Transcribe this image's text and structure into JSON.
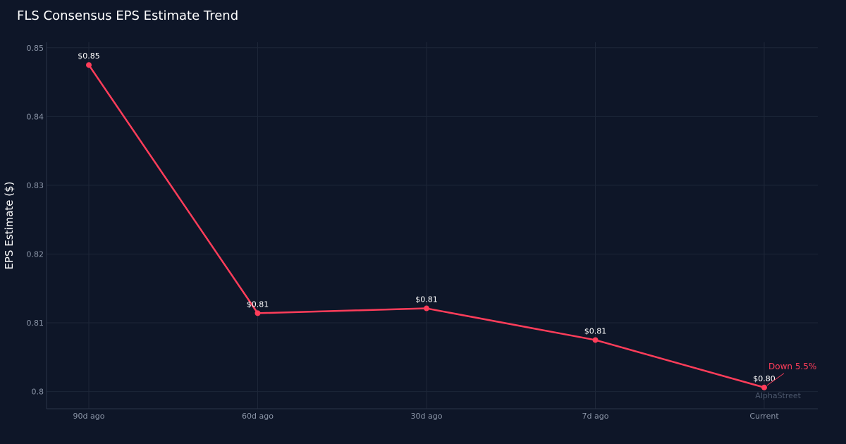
{
  "chart_data": {
    "type": "line",
    "title": "FLS Consensus EPS Estimate Trend",
    "xlabel": "",
    "ylabel": "EPS Estimate ($)",
    "categories": [
      "90d ago",
      "60d ago",
      "30d ago",
      "7d ago",
      "Current"
    ],
    "series": [
      {
        "values": [
          0.8475,
          0.8114,
          0.8121,
          0.8075,
          0.8006
        ],
        "labels": [
          "$0.85",
          "$0.81",
          "$0.81",
          "$0.81",
          "$0.80"
        ]
      }
    ],
    "ylim": [
      0.7975,
      0.8508
    ],
    "yticks": [
      0.8,
      0.81,
      0.82,
      0.83,
      0.84,
      0.85
    ],
    "ytick_labels": [
      "0.8",
      "0.81",
      "0.82",
      "0.83",
      "0.84",
      "0.85"
    ],
    "grid": true,
    "line_color": "#ff3d5a",
    "background": "#0e1628",
    "annotation": {
      "text": "Down 5.5%",
      "target_index": 4,
      "color": "#ff3d5a"
    },
    "watermark": "AlphaStreet"
  }
}
